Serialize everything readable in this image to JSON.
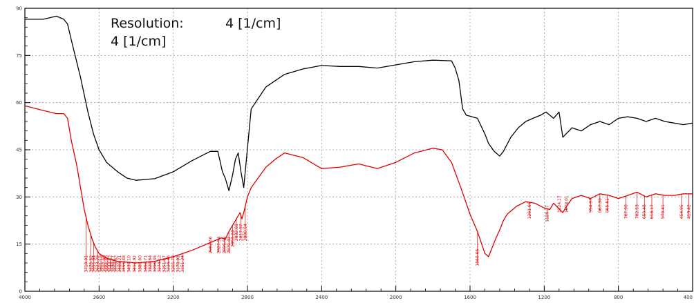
{
  "chart_data": {
    "type": "line",
    "title": "",
    "xlabel": "",
    "ylabel": "",
    "annotations": [
      "Resolution:",
      "4 [1/cm]",
      "4 [1/cm]"
    ],
    "x_reversed": true,
    "xlim": [
      4000,
      400
    ],
    "ylim": [
      0,
      90
    ],
    "grid": true,
    "xticks": [
      4000,
      3600,
      3200,
      2800,
      2400,
      2000,
      1600,
      1200,
      800,
      400
    ],
    "xtick_labels": [
      "4000",
      "3600",
      "3200",
      "2800",
      "2400",
      "2000",
      "1600",
      "1200",
      "800",
      "400"
    ],
    "yticks": [
      0,
      15,
      30,
      45,
      60,
      75,
      90
    ],
    "ytick_labels": [
      "0",
      "15",
      "30",
      "45",
      "60",
      "75",
      "90"
    ],
    "series": [
      {
        "color": "#000000",
        "x": [
          4000,
          3900,
          3830,
          3790,
          3770,
          3750,
          3700,
          3660,
          3630,
          3600,
          3560,
          3500,
          3450,
          3400,
          3300,
          3200,
          3100,
          3000,
          2960,
          2935,
          2920,
          2900,
          2880,
          2865,
          2850,
          2835,
          2820,
          2780,
          2700,
          2600,
          2500,
          2400,
          2300,
          2200,
          2100,
          2000,
          1900,
          1800,
          1700,
          1680,
          1660,
          1640,
          1620,
          1560,
          1520,
          1500,
          1470,
          1440,
          1420,
          1380,
          1340,
          1300,
          1260,
          1220,
          1190,
          1170,
          1150,
          1120,
          1100,
          1050,
          1000,
          950,
          900,
          850,
          800,
          750,
          700,
          650,
          600,
          550,
          500,
          450,
          400
        ],
        "y": [
          86.5,
          86.5,
          87.5,
          86.5,
          85,
          80,
          68,
          57,
          50,
          45,
          41,
          38,
          36,
          35.3,
          35.8,
          38,
          41.5,
          44.5,
          44.5,
          38,
          36,
          32,
          37,
          42,
          44,
          38,
          33,
          58,
          65,
          69,
          70.7,
          71.8,
          71.5,
          71.5,
          71,
          72,
          73,
          73.5,
          73.3,
          71,
          67,
          58,
          56,
          55,
          50,
          47,
          44.5,
          43,
          44.5,
          49,
          52,
          54,
          55,
          56,
          57,
          56,
          55,
          57,
          49,
          52,
          51,
          53,
          54,
          53,
          55,
          55.5,
          55,
          54,
          55,
          54,
          53.5,
          53,
          53.5
        ]
      },
      {
        "color": "#e00000",
        "x": [
          4000,
          3900,
          3830,
          3790,
          3770,
          3750,
          3720,
          3700,
          3680,
          3660,
          3640,
          3620,
          3600,
          3560,
          3500,
          3400,
          3300,
          3200,
          3100,
          3000,
          2940,
          2920,
          2900,
          2880,
          2860,
          2840,
          2830,
          2820,
          2800,
          2780,
          2700,
          2650,
          2600,
          2500,
          2400,
          2300,
          2200,
          2100,
          2000,
          1900,
          1800,
          1750,
          1700,
          1650,
          1600,
          1560,
          1520,
          1500,
          1480,
          1460,
          1440,
          1420,
          1400,
          1350,
          1300,
          1250,
          1200,
          1170,
          1150,
          1100,
          1080,
          1050,
          1000,
          950,
          900,
          850,
          800,
          750,
          700,
          650,
          600,
          550,
          500,
          450,
          400
        ],
        "y": [
          59,
          57.5,
          56.5,
          56.5,
          55,
          48,
          40,
          33,
          26,
          21,
          17,
          14,
          12,
          10.5,
          9.5,
          9,
          9.5,
          11,
          13,
          15.5,
          17,
          16.5,
          19,
          21,
          23,
          25,
          23,
          25,
          30,
          33,
          39.5,
          42,
          44,
          42.5,
          39,
          39.5,
          40.5,
          39,
          41,
          44,
          45.5,
          45,
          41,
          33,
          24.5,
          19,
          12,
          11,
          14,
          17,
          19.5,
          22.5,
          24.5,
          27,
          28.5,
          28,
          26.5,
          26,
          28,
          25,
          27,
          29.5,
          30.5,
          29.5,
          31,
          30.5,
          29.5,
          30.5,
          31.5,
          30,
          31,
          30.5,
          30.5,
          31,
          31
        ]
      }
    ],
    "peak_labels": [
      {
        "x": 3670,
        "y": 6,
        "label": "3710.01"
      },
      {
        "x": 3645,
        "y": 6,
        "label": "3676.62"
      },
      {
        "x": 3630,
        "y": 6,
        "label": "3655.84"
      },
      {
        "x": 3608,
        "y": 6,
        "label": "3623.28"
      },
      {
        "x": 3590,
        "y": 6,
        "label": "3601.12"
      },
      {
        "x": 3572,
        "y": 6,
        "label": "3587.89"
      },
      {
        "x": 3556,
        "y": 6,
        "label": "3566.10"
      },
      {
        "x": 3540,
        "y": 6,
        "label": "3544.32"
      },
      {
        "x": 3525,
        "y": 6,
        "label": "3530.77"
      },
      {
        "x": 3510,
        "y": 6,
        "label": "3510.62"
      },
      {
        "x": 3490,
        "y": 6,
        "label": "3488.21"
      },
      {
        "x": 3468,
        "y": 6,
        "label": "3456.48"
      },
      {
        "x": 3440,
        "y": 6,
        "label": "3437.10"
      },
      {
        "x": 3410,
        "y": 6,
        "label": "3412.92"
      },
      {
        "x": 3380,
        "y": 6,
        "label": "3388.60"
      },
      {
        "x": 3350,
        "y": 6,
        "label": "3352.71"
      },
      {
        "x": 3325,
        "y": 6,
        "label": "3320.64"
      },
      {
        "x": 3300,
        "y": 6,
        "label": "3296.35"
      },
      {
        "x": 3275,
        "y": 6,
        "label": "3274.12"
      },
      {
        "x": 3250,
        "y": 6,
        "label": "3251.87"
      },
      {
        "x": 3226,
        "y": 6,
        "label": "3226.46"
      },
      {
        "x": 3200,
        "y": 6,
        "label": "3205.78"
      },
      {
        "x": 3175,
        "y": 6,
        "label": "3178.01"
      },
      {
        "x": 3150,
        "y": 6,
        "label": "3151.24"
      },
      {
        "x": 3000,
        "y": 12,
        "label": "2962.66"
      },
      {
        "x": 2955,
        "y": 12,
        "label": "2927.94"
      },
      {
        "x": 2925,
        "y": 12,
        "label": "2896.58"
      },
      {
        "x": 2900,
        "y": 12,
        "label": "2870.42"
      },
      {
        "x": 2880,
        "y": 14,
        "label": "2853.24"
      },
      {
        "x": 2860,
        "y": 16,
        "label": "2832.68"
      },
      {
        "x": 2836,
        "y": 16,
        "label": "2817.97"
      },
      {
        "x": 2812,
        "y": 16,
        "label": "2800.54"
      },
      {
        "x": 1560,
        "y": 8,
        "label": "1560.66"
      },
      {
        "x": 1280,
        "y": 23,
        "label": "1261.66"
      },
      {
        "x": 1185,
        "y": 22,
        "label": "1189.77"
      },
      {
        "x": 1120,
        "y": 25,
        "label": "1124.17"
      },
      {
        "x": 1080,
        "y": 25,
        "label": "1078.01"
      },
      {
        "x": 950,
        "y": 25,
        "label": "954.97"
      },
      {
        "x": 900,
        "y": 25,
        "label": "907.39"
      },
      {
        "x": 860,
        "y": 25,
        "label": "865.61"
      },
      {
        "x": 760,
        "y": 23,
        "label": "767.98"
      },
      {
        "x": 700,
        "y": 23,
        "label": "702.53"
      },
      {
        "x": 660,
        "y": 23,
        "label": "659.48"
      },
      {
        "x": 620,
        "y": 23,
        "label": "613.17"
      },
      {
        "x": 560,
        "y": 23,
        "label": "570.41"
      },
      {
        "x": 460,
        "y": 23,
        "label": "454.95"
      },
      {
        "x": 420,
        "y": 23,
        "label": "419.42"
      }
    ]
  }
}
